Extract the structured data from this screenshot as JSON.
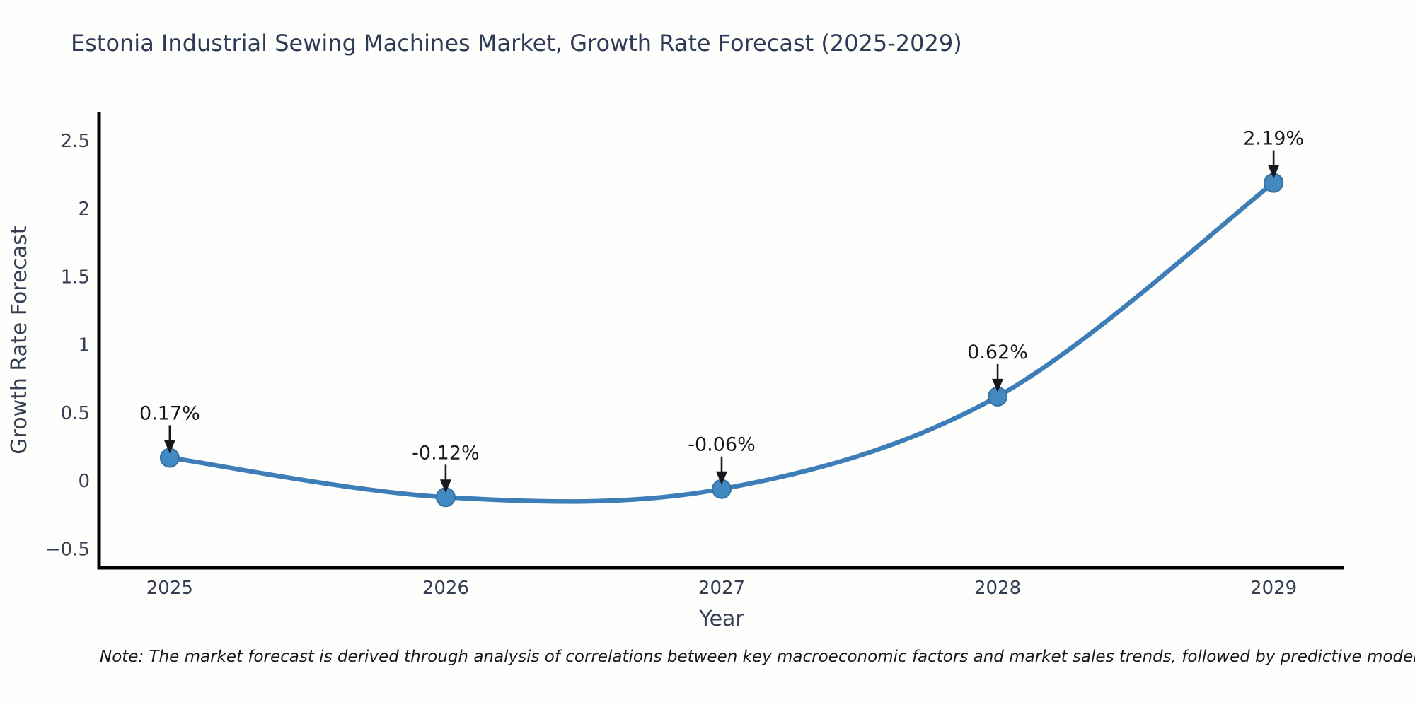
{
  "figure": {
    "title": "Estonia Industrial Sewing Machines Market, Growth Rate Forecast (2025-2029)",
    "note": "Note: The market forecast is derived through analysis of correlations between key macroeconomic factors and market sales trends, followed by predictive modeling to project future sa"
  },
  "chart_data": {
    "type": "line",
    "title": "Estonia Industrial Sewing Machines Market, Growth Rate Forecast (2025-2029)",
    "xlabel": "Year",
    "ylabel": "Growth Rate Forecast",
    "x": [
      2025,
      2026,
      2027,
      2028,
      2029
    ],
    "values": [
      0.17,
      -0.12,
      -0.06,
      0.62,
      2.19
    ],
    "point_labels": [
      "0.17%",
      "-0.12%",
      "-0.06%",
      "0.62%",
      "2.19%"
    ],
    "xtick_labels": [
      "2025",
      "2026",
      "2027",
      "2028",
      "2029"
    ],
    "yticks": [
      -0.5,
      0,
      0.5,
      1,
      1.5,
      2,
      2.5
    ],
    "ytick_labels": [
      "−0.5",
      "0",
      "0.5",
      "1",
      "1.5",
      "2",
      "2.5"
    ],
    "xlim": [
      2024.744,
      2029.256
    ],
    "ylim": [
      -0.638,
      2.702
    ],
    "grid": false,
    "legend": null,
    "line_smooth": true,
    "annotation_arrows": true,
    "colors": {
      "line": "#3d7eb8",
      "marker_fill": "#4289c2",
      "marker_edge": "#36719f",
      "axis_spine": "#000000",
      "tick_text": "#333e52",
      "title_text": "#2e3a56",
      "annotation_text": "#16181d",
      "background": "#fefefc"
    }
  }
}
